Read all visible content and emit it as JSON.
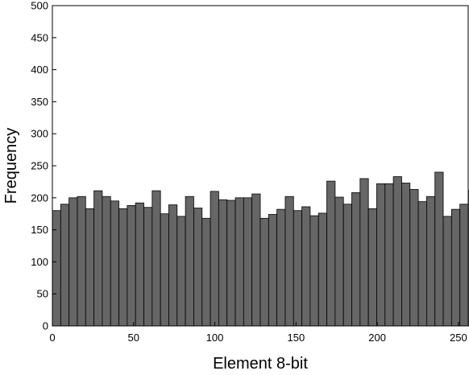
{
  "chart_data": {
    "type": "bar",
    "title": "",
    "xlabel": "Element 8-bit",
    "ylabel": "Frequency",
    "xlim": [
      0,
      256
    ],
    "ylim": [
      0,
      500
    ],
    "x_ticks": [
      0,
      50,
      100,
      150,
      200,
      250
    ],
    "y_ticks": [
      0,
      50,
      100,
      150,
      200,
      250,
      300,
      350,
      400,
      450,
      500
    ],
    "bin_width": 5.12,
    "grid": false,
    "bar_color": "#666666",
    "bar_edge_color": "#000000",
    "values": [
      180,
      190,
      200,
      202,
      183,
      211,
      202,
      195,
      183,
      188,
      192,
      185,
      211,
      175,
      189,
      171,
      202,
      184,
      168,
      210,
      197,
      196,
      200,
      200,
      206,
      168,
      174,
      182,
      202,
      180,
      186,
      172,
      176,
      226,
      201,
      190,
      208,
      230,
      183,
      222,
      222,
      233,
      223,
      213,
      194,
      202,
      240,
      171,
      182,
      190,
      211
    ]
  }
}
